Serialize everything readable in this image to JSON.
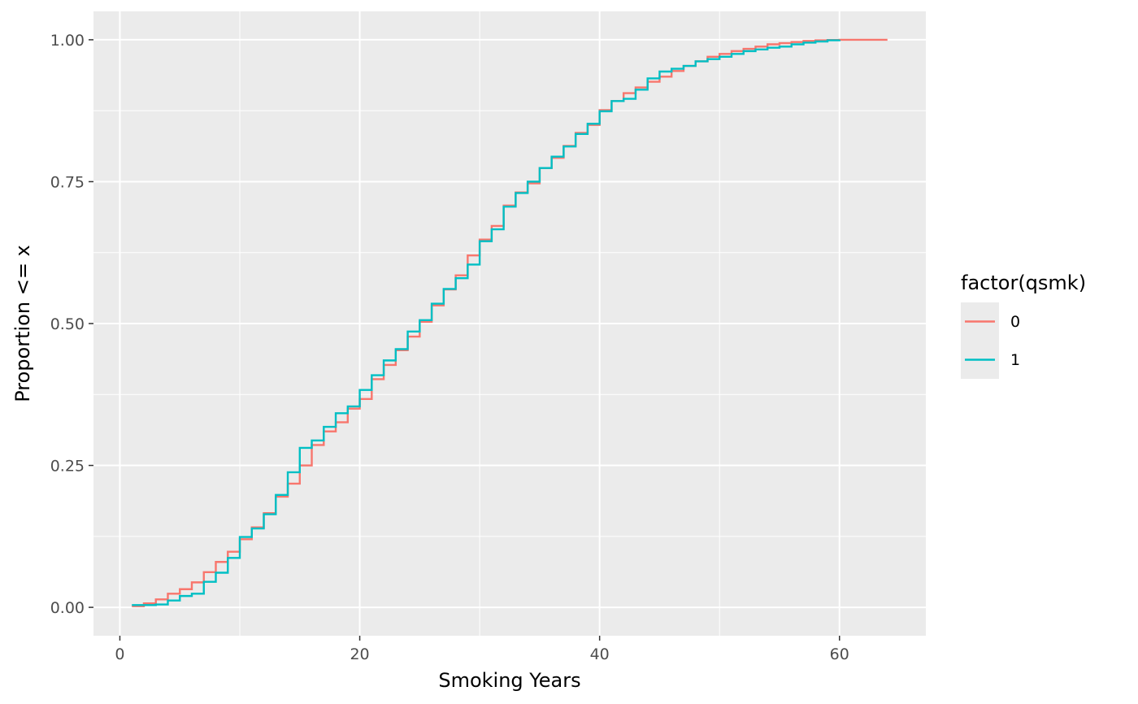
{
  "chart_data": {
    "type": "line",
    "step": true,
    "title": "",
    "xlabel": "Smoking Years",
    "ylabel": "Proportion <= x",
    "xlim": [
      -2.2,
      67.2
    ],
    "ylim": [
      -0.05,
      1.05
    ],
    "x_ticks": [
      0,
      20,
      40,
      60
    ],
    "x_tick_labels": [
      "0",
      "20",
      "40",
      "60"
    ],
    "y_ticks": [
      0,
      0.25,
      0.5,
      0.75,
      1
    ],
    "y_tick_labels": [
      "0.00",
      "0.25",
      "0.50",
      "0.75",
      "1.00"
    ],
    "grid": true,
    "legend": {
      "title": "factor(qsmk)",
      "position": "right"
    },
    "series": [
      {
        "name": "0",
        "color": "#F8766D",
        "x": [
          1,
          2,
          3,
          4,
          5,
          6,
          7,
          8,
          9,
          10,
          11,
          12,
          13,
          14,
          15,
          16,
          17,
          18,
          19,
          20,
          21,
          22,
          23,
          24,
          25,
          26,
          27,
          28,
          29,
          30,
          31,
          32,
          33,
          34,
          35,
          36,
          37,
          38,
          39,
          40,
          41,
          42,
          43,
          44,
          45,
          46,
          47,
          48,
          49,
          50,
          51,
          52,
          53,
          54,
          55,
          56,
          57,
          58,
          59,
          60,
          61,
          62,
          63,
          64
        ],
        "y": [
          0.002,
          0.007,
          0.014,
          0.024,
          0.032,
          0.044,
          0.062,
          0.08,
          0.098,
          0.12,
          0.141,
          0.166,
          0.195,
          0.218,
          0.25,
          0.286,
          0.31,
          0.326,
          0.35,
          0.367,
          0.402,
          0.427,
          0.453,
          0.477,
          0.503,
          0.532,
          0.56,
          0.585,
          0.62,
          0.648,
          0.672,
          0.708,
          0.731,
          0.747,
          0.774,
          0.792,
          0.813,
          0.836,
          0.85,
          0.876,
          0.892,
          0.906,
          0.916,
          0.926,
          0.935,
          0.945,
          0.954,
          0.962,
          0.97,
          0.975,
          0.98,
          0.984,
          0.988,
          0.992,
          0.994,
          0.996,
          0.998,
          0.999,
          0.9995,
          1.0,
          1.0,
          1.0,
          1.0,
          1.0
        ]
      },
      {
        "name": "1",
        "color": "#00BFC4",
        "x": [
          1,
          2,
          3,
          4,
          5,
          6,
          7,
          8,
          9,
          10,
          11,
          12,
          13,
          14,
          15,
          16,
          17,
          18,
          19,
          20,
          21,
          22,
          23,
          24,
          25,
          26,
          27,
          28,
          29,
          30,
          31,
          32,
          33,
          34,
          35,
          36,
          37,
          38,
          39,
          40,
          41,
          42,
          43,
          44,
          45,
          46,
          47,
          48,
          49,
          50,
          51,
          52,
          53,
          54,
          55,
          56,
          57,
          58,
          59,
          60
        ],
        "y": [
          0.004,
          0.004,
          0.005,
          0.012,
          0.02,
          0.024,
          0.045,
          0.061,
          0.087,
          0.124,
          0.139,
          0.164,
          0.198,
          0.238,
          0.281,
          0.294,
          0.318,
          0.342,
          0.354,
          0.383,
          0.409,
          0.435,
          0.455,
          0.486,
          0.506,
          0.535,
          0.561,
          0.58,
          0.604,
          0.645,
          0.666,
          0.706,
          0.73,
          0.75,
          0.774,
          0.794,
          0.812,
          0.834,
          0.852,
          0.874,
          0.892,
          0.896,
          0.912,
          0.932,
          0.944,
          0.949,
          0.954,
          0.962,
          0.966,
          0.97,
          0.975,
          0.98,
          0.983,
          0.986,
          0.988,
          0.992,
          0.995,
          0.997,
          0.999,
          1.0
        ]
      }
    ]
  }
}
